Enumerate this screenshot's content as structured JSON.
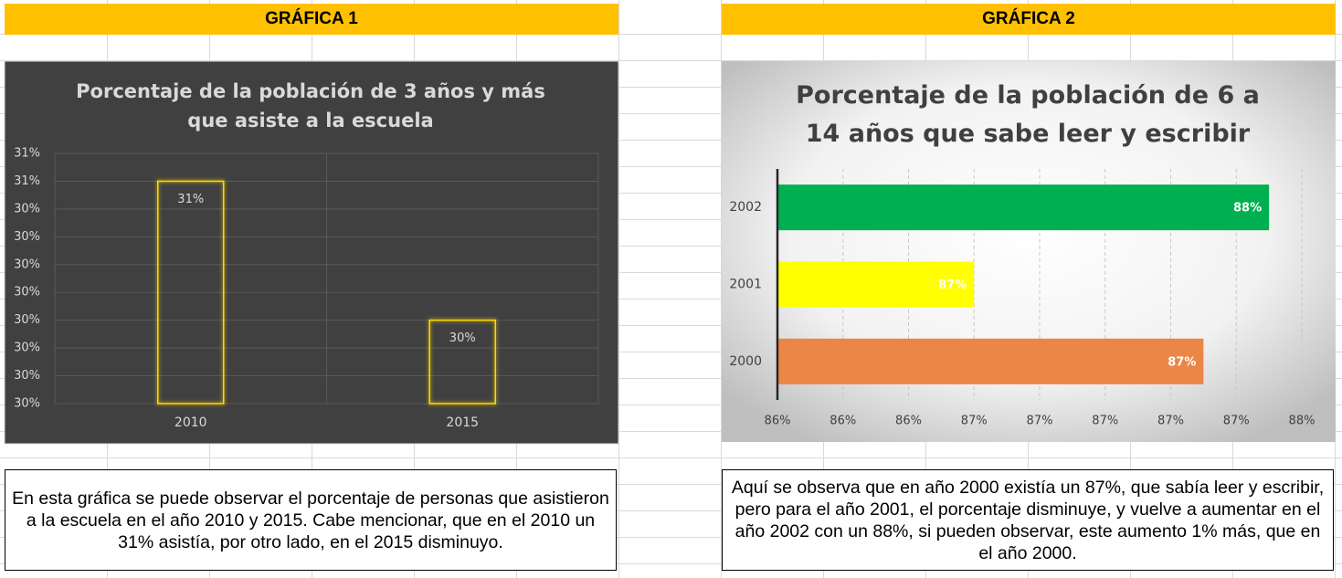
{
  "headers": [
    "GRÁFICA 1",
    "GRÁFICA 2"
  ],
  "chart_data": [
    {
      "type": "bar",
      "title": "Porcentaje de la población de 3 años y más que asiste a la escuela",
      "categories": [
        "2010",
        "2015"
      ],
      "values": [
        30.5,
        30.25
      ],
      "value_labels": [
        "31%",
        "30%"
      ],
      "color": "#ffd700",
      "background": "#404040",
      "ylim": [
        30.1,
        30.55
      ],
      "yticks": [
        {
          "value": 30.1,
          "label": "30%"
        },
        {
          "value": 30.15,
          "label": "30%"
        },
        {
          "value": 30.2,
          "label": "30%"
        },
        {
          "value": 30.25,
          "label": "30%"
        },
        {
          "value": 30.3,
          "label": "30%"
        },
        {
          "value": 30.35,
          "label": "30%"
        },
        {
          "value": 30.4,
          "label": "30%"
        },
        {
          "value": 30.45,
          "label": "30%"
        },
        {
          "value": 30.5,
          "label": "31%"
        },
        {
          "value": 30.55,
          "label": "31%"
        }
      ],
      "grid": true
    },
    {
      "type": "barh",
      "title": "Porcentaje de la población de 6 a 14 años que sabe leer y escribir",
      "categories": [
        "2000",
        "2001",
        "2002"
      ],
      "values": [
        87.3,
        86.6,
        87.5
      ],
      "value_labels": [
        "87%",
        "87%",
        "88%"
      ],
      "colors": [
        "#eb8647",
        "#ffff00",
        "#00b050"
      ],
      "xlim": [
        86,
        87.6
      ],
      "xticks": [
        {
          "value": 86,
          "label": "86%"
        },
        {
          "value": 86.2,
          "label": "86%"
        },
        {
          "value": 86.4,
          "label": "86%"
        },
        {
          "value": 86.6,
          "label": "87%"
        },
        {
          "value": 86.8,
          "label": "87%"
        },
        {
          "value": 87,
          "label": "87%"
        },
        {
          "value": 87.2,
          "label": "87%"
        },
        {
          "value": 87.4,
          "label": "87%"
        },
        {
          "value": 87.6,
          "label": "88%"
        }
      ],
      "grid": true
    }
  ],
  "notes": [
    "En esta gráfica se puede observar el porcentaje de personas que asistieron a la escuela en el año 2010 y 2015. Cabe mencionar, que en el 2010 un 31% asistía, por otro lado, en el 2015 disminuyo.",
    "Aquí se observa  que en año 2000 existía un 87%, que sabía leer y escribir, pero para el año 2001, el porcentaje disminuye, y vuelve a aumentar en el año 2002 con un 88%, si pueden observar, este aumento 1%  más, que en el año 2000."
  ]
}
